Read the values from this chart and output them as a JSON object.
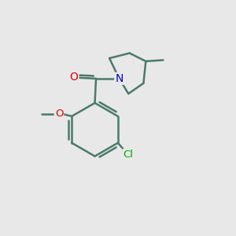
{
  "background_color": "#e8e8e8",
  "bond_color": "#4a7a6a",
  "bond_width": 1.8,
  "atom_colors": {
    "O_carbonyl": "#dd0000",
    "O_methoxy": "#dd0000",
    "N": "#0000cc",
    "Cl": "#00aa00"
  },
  "figsize": [
    3.0,
    3.0
  ],
  "dpi": 100
}
